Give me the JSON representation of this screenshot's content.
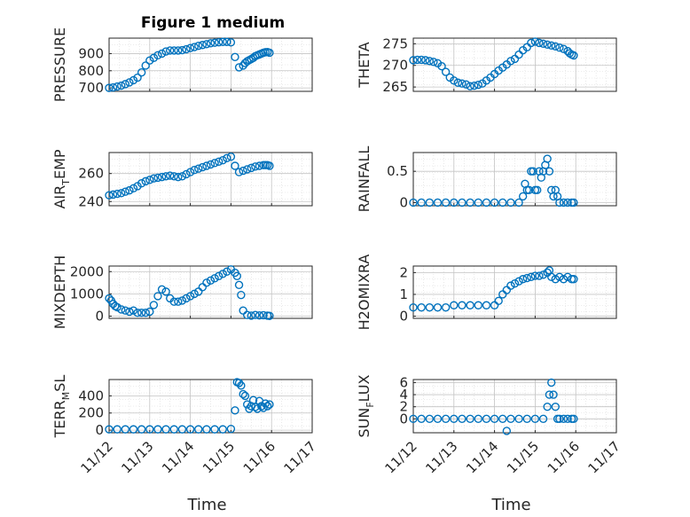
{
  "figure": {
    "title": "Figure 1 medium"
  },
  "chart_data": [
    {
      "type": "scatter",
      "id": "pressure",
      "ylabel": "PRESSURE",
      "ylabel_sub": null,
      "ylim": [
        680,
        990
      ],
      "yticks": [
        700,
        800,
        900
      ],
      "xlim": [
        0,
        5
      ],
      "xticks": [
        "11/12",
        "11/13",
        "11/14",
        "11/15",
        "11/16",
        "11/17"
      ],
      "xlabel": "",
      "marker_color": "#0072bd",
      "x": [
        0,
        0.1,
        0.2,
        0.3,
        0.4,
        0.5,
        0.6,
        0.7,
        0.8,
        0.9,
        1.0,
        1.1,
        1.2,
        1.3,
        1.4,
        1.5,
        1.6,
        1.7,
        1.8,
        1.9,
        2.0,
        2.1,
        2.2,
        2.3,
        2.4,
        2.5,
        2.6,
        2.7,
        2.8,
        2.9,
        3.0,
        3.1,
        3.2,
        3.3,
        3.35,
        3.4,
        3.45,
        3.5,
        3.55,
        3.6,
        3.65,
        3.7,
        3.75,
        3.8,
        3.85,
        3.9,
        3.95
      ],
      "y": [
        700,
        703,
        708,
        713,
        722,
        732,
        745,
        760,
        790,
        830,
        860,
        875,
        890,
        900,
        912,
        918,
        918,
        918,
        920,
        925,
        932,
        938,
        945,
        950,
        955,
        960,
        963,
        966,
        968,
        968,
        965,
        880,
        820,
        830,
        845,
        855,
        862,
        868,
        875,
        885,
        890,
        895,
        900,
        905,
        908,
        909,
        905
      ]
    },
    {
      "type": "scatter",
      "id": "theta",
      "ylabel": "THETA",
      "ylabel_sub": null,
      "ylim": [
        264,
        276.3
      ],
      "yticks": [
        265,
        270,
        275
      ],
      "xlim": [
        0,
        5
      ],
      "xticks": [
        "11/12",
        "11/13",
        "11/14",
        "11/15",
        "11/16",
        "11/17"
      ],
      "xlabel": "",
      "marker_color": "#0072bd",
      "x": [
        0,
        0.1,
        0.2,
        0.3,
        0.4,
        0.5,
        0.6,
        0.7,
        0.8,
        0.9,
        1.0,
        1.1,
        1.2,
        1.3,
        1.4,
        1.5,
        1.6,
        1.7,
        1.8,
        1.9,
        2.0,
        2.1,
        2.2,
        2.3,
        2.4,
        2.5,
        2.6,
        2.7,
        2.8,
        2.9,
        3.0,
        3.1,
        3.2,
        3.3,
        3.4,
        3.5,
        3.6,
        3.7,
        3.8,
        3.85,
        3.9,
        3.95
      ],
      "y": [
        271.2,
        271.3,
        271.3,
        271.2,
        271.0,
        270.8,
        270.5,
        269.8,
        268.5,
        267.2,
        266.5,
        266.0,
        265.8,
        265.6,
        265.2,
        265.3,
        265.5,
        265.8,
        266.5,
        267.2,
        268.0,
        268.8,
        269.5,
        270.2,
        271.0,
        271.5,
        272.5,
        273.5,
        274.2,
        275.2,
        275.5,
        275.2,
        275.0,
        274.8,
        274.6,
        274.4,
        274.1,
        273.8,
        273.3,
        272.8,
        272.5,
        272.3
      ]
    },
    {
      "type": "scatter",
      "id": "air_temp",
      "ylabel": "AIR",
      "ylabel_sub": "T",
      "ylabel_tail": "EMP",
      "ylim": [
        237,
        275
      ],
      "yticks": [
        240,
        260
      ],
      "xlim": [
        0,
        5
      ],
      "xticks": [
        "11/12",
        "11/13",
        "11/14",
        "11/15",
        "11/16",
        "11/17"
      ],
      "xlabel": "",
      "marker_color": "#0072bd",
      "x": [
        0,
        0.1,
        0.2,
        0.3,
        0.4,
        0.5,
        0.6,
        0.7,
        0.8,
        0.9,
        1.0,
        1.1,
        1.2,
        1.3,
        1.4,
        1.5,
        1.6,
        1.7,
        1.8,
        1.9,
        2.0,
        2.1,
        2.2,
        2.3,
        2.4,
        2.5,
        2.6,
        2.7,
        2.8,
        2.9,
        3.0,
        3.1,
        3.2,
        3.3,
        3.4,
        3.5,
        3.6,
        3.7,
        3.8,
        3.85,
        3.9,
        3.95
      ],
      "y": [
        244.5,
        245,
        245.5,
        246,
        247,
        248,
        249.5,
        251,
        253,
        254.5,
        255.5,
        256.5,
        257,
        257.5,
        258,
        258.5,
        258,
        257.5,
        258,
        259.5,
        261,
        262.5,
        263.5,
        264.5,
        265.5,
        266.5,
        267.5,
        268.5,
        269.5,
        271,
        272,
        265.5,
        261,
        262,
        263,
        264,
        265,
        265.5,
        266,
        266,
        266,
        265.5
      ]
    },
    {
      "type": "scatter",
      "id": "rainfall",
      "ylabel": "RAINFALL",
      "ylabel_sub": null,
      "ylim": [
        -0.05,
        0.8
      ],
      "yticks": [
        0,
        0.5
      ],
      "xlim": [
        0,
        5
      ],
      "xticks": [
        "11/12",
        "11/13",
        "11/14",
        "11/15",
        "11/16",
        "11/17"
      ],
      "xlabel": "",
      "marker_color": "#0072bd",
      "x": [
        0,
        0.2,
        0.4,
        0.6,
        0.8,
        1.0,
        1.2,
        1.4,
        1.6,
        1.8,
        2.0,
        2.2,
        2.4,
        2.6,
        2.7,
        2.75,
        2.8,
        2.85,
        2.9,
        2.95,
        3.0,
        3.05,
        3.1,
        3.15,
        3.2,
        3.25,
        3.3,
        3.35,
        3.4,
        3.45,
        3.5,
        3.55,
        3.6,
        3.7,
        3.8,
        3.9,
        3.95
      ],
      "y": [
        0,
        0,
        0,
        0,
        0,
        0,
        0,
        0,
        0,
        0,
        0,
        0,
        0,
        0,
        0.1,
        0.3,
        0.2,
        0.2,
        0.5,
        0.5,
        0.2,
        0.2,
        0.5,
        0.4,
        0.5,
        0.6,
        0.7,
        0.5,
        0.2,
        0.1,
        0.2,
        0.1,
        0,
        0,
        0,
        0,
        0
      ]
    },
    {
      "type": "scatter",
      "id": "mixdepth",
      "ylabel": "MIXDEPTH",
      "ylabel_sub": null,
      "ylim": [
        -100,
        2250
      ],
      "yticks": [
        0,
        1000,
        2000
      ],
      "xlim": [
        0,
        5
      ],
      "xticks": [
        "11/12",
        "11/13",
        "11/14",
        "11/15",
        "11/16",
        "11/17"
      ],
      "xlabel": "",
      "marker_color": "#0072bd",
      "x": [
        0,
        0.05,
        0.1,
        0.15,
        0.2,
        0.3,
        0.4,
        0.5,
        0.6,
        0.7,
        0.8,
        0.9,
        1.0,
        1.1,
        1.2,
        1.3,
        1.4,
        1.5,
        1.6,
        1.7,
        1.8,
        1.9,
        2.0,
        2.1,
        2.2,
        2.3,
        2.4,
        2.5,
        2.6,
        2.7,
        2.8,
        2.9,
        3.0,
        3.1,
        3.15,
        3.2,
        3.25,
        3.3,
        3.4,
        3.5,
        3.6,
        3.7,
        3.8,
        3.9,
        3.95
      ],
      "y": [
        800,
        700,
        550,
        450,
        400,
        300,
        250,
        200,
        250,
        150,
        150,
        150,
        200,
        500,
        900,
        1200,
        1100,
        800,
        650,
        650,
        700,
        800,
        900,
        1000,
        1100,
        1300,
        1500,
        1600,
        1700,
        1800,
        1900,
        2000,
        2100,
        1950,
        1800,
        1400,
        950,
        250,
        50,
        20,
        50,
        30,
        40,
        20,
        10
      ]
    },
    {
      "type": "scatter",
      "id": "h2omixra",
      "ylabel": "H2OMIXRA",
      "ylabel_sub": null,
      "ylim": [
        -0.1,
        2.3
      ],
      "yticks": [
        0,
        1,
        2
      ],
      "xlim": [
        0,
        5
      ],
      "xticks": [
        "11/12",
        "11/13",
        "11/14",
        "11/15",
        "11/16",
        "11/17"
      ],
      "xlabel": "",
      "marker_color": "#0072bd",
      "x": [
        0,
        0.2,
        0.4,
        0.6,
        0.8,
        1.0,
        1.2,
        1.4,
        1.6,
        1.8,
        2.0,
        2.1,
        2.2,
        2.3,
        2.4,
        2.5,
        2.6,
        2.7,
        2.8,
        2.9,
        3.0,
        3.1,
        3.2,
        3.3,
        3.35,
        3.4,
        3.5,
        3.6,
        3.7,
        3.8,
        3.9,
        3.95
      ],
      "y": [
        0.4,
        0.4,
        0.4,
        0.4,
        0.4,
        0.5,
        0.5,
        0.5,
        0.5,
        0.5,
        0.5,
        0.7,
        1.0,
        1.2,
        1.4,
        1.5,
        1.6,
        1.7,
        1.75,
        1.8,
        1.85,
        1.85,
        1.9,
        2.0,
        2.1,
        1.8,
        1.7,
        1.8,
        1.7,
        1.8,
        1.7,
        1.7
      ]
    },
    {
      "type": "scatter",
      "id": "terr_msl",
      "ylabel": "TERR",
      "ylabel_sub": "M",
      "ylabel_tail": "SL",
      "ylim": [
        -30,
        590
      ],
      "yticks": [
        0,
        200,
        400
      ],
      "xlim": [
        0,
        5
      ],
      "xticks": [
        "11/12",
        "11/13",
        "11/14",
        "11/15",
        "11/16",
        "11/17"
      ],
      "xlabel": "Time",
      "marker_color": "#0072bd",
      "x": [
        0,
        0.2,
        0.4,
        0.6,
        0.8,
        1.0,
        1.2,
        1.4,
        1.6,
        1.8,
        2.0,
        2.2,
        2.4,
        2.6,
        2.8,
        3.0,
        3.1,
        3.15,
        3.2,
        3.25,
        3.3,
        3.35,
        3.4,
        3.45,
        3.5,
        3.55,
        3.6,
        3.65,
        3.7,
        3.75,
        3.8,
        3.85,
        3.9,
        3.95
      ],
      "y": [
        10,
        10,
        10,
        10,
        10,
        10,
        10,
        10,
        10,
        10,
        10,
        10,
        10,
        10,
        10,
        15,
        230,
        560,
        550,
        520,
        420,
        400,
        300,
        250,
        280,
        350,
        270,
        250,
        340,
        280,
        260,
        310,
        280,
        300
      ]
    },
    {
      "type": "scatter",
      "id": "sun_flux",
      "ylabel": "SUN",
      "ylabel_sub": "F",
      "ylabel_tail": "LUX",
      "ylim": [
        -2.3,
        6.5
      ],
      "yticks": [
        0,
        2,
        4,
        6
      ],
      "xlim": [
        0,
        5
      ],
      "xticks": [
        "11/12",
        "11/13",
        "11/14",
        "11/15",
        "11/16",
        "11/17"
      ],
      "xlabel": "Time",
      "marker_color": "#0072bd",
      "x": [
        0,
        0.2,
        0.4,
        0.6,
        0.8,
        1.0,
        1.2,
        1.4,
        1.6,
        1.8,
        2.0,
        2.2,
        2.3,
        2.4,
        2.6,
        2.8,
        3.0,
        3.2,
        3.3,
        3.35,
        3.4,
        3.45,
        3.5,
        3.55,
        3.6,
        3.7,
        3.8,
        3.9,
        3.95
      ],
      "y": [
        0,
        0,
        0,
        0,
        0,
        0,
        0,
        0,
        0,
        0,
        0,
        0,
        -2,
        0,
        0,
        0,
        0,
        0,
        2,
        4,
        6,
        4,
        2,
        0,
        0,
        0,
        0,
        0,
        0
      ]
    }
  ]
}
